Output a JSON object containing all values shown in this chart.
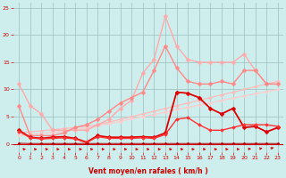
{
  "xlabel": "Vent moyen/en rafales ( km/h )",
  "xlim": [
    -0.5,
    23.5
  ],
  "ylim": [
    -1.5,
    26
  ],
  "background_color": "#ceeeed",
  "grid_color": "#9bbfbf",
  "series": [
    {
      "name": "lightest_pink_straight1",
      "x": [
        0,
        1,
        2,
        3,
        4,
        5,
        6,
        7,
        8,
        9,
        10,
        11,
        12,
        13,
        14,
        15,
        16,
        17,
        18,
        19,
        20,
        21,
        22,
        23
      ],
      "y": [
        2.0,
        2.2,
        2.4,
        2.6,
        2.8,
        3.0,
        3.2,
        3.5,
        4.0,
        4.5,
        5.0,
        5.5,
        6.0,
        6.5,
        7.0,
        7.5,
        8.0,
        8.5,
        9.0,
        9.5,
        10.0,
        10.5,
        11.0,
        11.5
      ],
      "color": "#ffbbbb",
      "linewidth": 0.9,
      "marker": "D",
      "markersize": 1.8
    },
    {
      "name": "lightest_pink_straight2",
      "x": [
        0,
        1,
        2,
        3,
        4,
        5,
        6,
        7,
        8,
        9,
        10,
        11,
        12,
        13,
        14,
        15,
        16,
        17,
        18,
        19,
        20,
        21,
        22,
        23
      ],
      "y": [
        1.5,
        1.7,
        1.9,
        2.1,
        2.3,
        2.6,
        2.9,
        3.3,
        3.7,
        4.1,
        4.6,
        5.0,
        5.4,
        5.8,
        6.3,
        6.7,
        7.1,
        7.5,
        8.0,
        8.4,
        8.8,
        9.2,
        9.6,
        10.0
      ],
      "color": "#ffcccc",
      "linewidth": 0.9,
      "marker": "D",
      "markersize": 1.8
    },
    {
      "name": "salmon_peak_high",
      "x": [
        0,
        1,
        2,
        3,
        4,
        5,
        6,
        7,
        8,
        9,
        10,
        11,
        12,
        13,
        14,
        15,
        16,
        17,
        18,
        19,
        20,
        21,
        22,
        23
      ],
      "y": [
        11.0,
        7.0,
        5.5,
        2.5,
        2.5,
        2.5,
        2.5,
        3.5,
        4.5,
        6.5,
        8.0,
        13.0,
        15.5,
        23.5,
        18.0,
        15.5,
        15.0,
        15.0,
        15.0,
        15.0,
        16.5,
        13.5,
        11.0,
        11.0
      ],
      "color": "#ffaaaa",
      "linewidth": 1.0,
      "marker": "D",
      "markersize": 2.5
    },
    {
      "name": "salmon_peak_mid",
      "x": [
        0,
        1,
        2,
        3,
        4,
        5,
        6,
        7,
        8,
        9,
        10,
        11,
        12,
        13,
        14,
        15,
        16,
        17,
        18,
        19,
        20,
        21,
        22,
        23
      ],
      "y": [
        7.0,
        1.5,
        1.5,
        1.5,
        2.0,
        3.0,
        3.5,
        4.5,
        6.0,
        7.5,
        8.5,
        9.5,
        13.5,
        18.0,
        14.0,
        11.5,
        11.0,
        11.0,
        11.5,
        11.0,
        13.5,
        13.5,
        11.0,
        11.0
      ],
      "color": "#ff8888",
      "linewidth": 1.0,
      "marker": "D",
      "markersize": 2.5
    },
    {
      "name": "dark_red_spiky",
      "x": [
        0,
        1,
        2,
        3,
        4,
        5,
        6,
        7,
        8,
        9,
        10,
        11,
        12,
        13,
        14,
        15,
        16,
        17,
        18,
        19,
        20,
        21,
        22,
        23
      ],
      "y": [
        2.5,
        1.2,
        1.0,
        1.2,
        1.3,
        1.0,
        0.3,
        1.5,
        1.2,
        1.2,
        1.2,
        1.3,
        1.2,
        2.0,
        9.5,
        9.3,
        8.5,
        6.5,
        5.5,
        6.5,
        3.0,
        3.2,
        2.2,
        3.0
      ],
      "color": "#dd0000",
      "linewidth": 1.3,
      "marker": "D",
      "markersize": 2.5
    },
    {
      "name": "dark_red_lower",
      "x": [
        0,
        1,
        2,
        3,
        4,
        5,
        6,
        7,
        8,
        9,
        10,
        11,
        12,
        13,
        14,
        15,
        16,
        17,
        18,
        19,
        20,
        21,
        22,
        23
      ],
      "y": [
        2.3,
        1.1,
        0.9,
        1.0,
        1.1,
        0.9,
        0.2,
        1.3,
        1.0,
        1.0,
        1.0,
        1.1,
        1.0,
        1.7,
        4.5,
        4.8,
        3.5,
        2.5,
        2.5,
        3.0,
        3.5,
        3.5,
        3.5,
        3.2
      ],
      "color": "#ff3333",
      "linewidth": 1.0,
      "marker": "D",
      "markersize": 2.0
    },
    {
      "name": "bottom_flat",
      "x": [
        0,
        1,
        2,
        3,
        4,
        5,
        6,
        7,
        8,
        9,
        10,
        11,
        12,
        13,
        14,
        15,
        16,
        17,
        18,
        19,
        20,
        21,
        22,
        23
      ],
      "y": [
        0.1,
        0.05,
        0.05,
        0.05,
        0.05,
        0.05,
        0.05,
        0.05,
        0.05,
        0.05,
        0.05,
        0.05,
        0.05,
        0.05,
        0.05,
        0.05,
        0.05,
        0.05,
        0.05,
        0.05,
        0.05,
        0.05,
        0.05,
        0.05
      ],
      "color": "#aa0000",
      "linewidth": 0.7,
      "marker": "D",
      "markersize": 1.5
    }
  ],
  "xticks": [
    0,
    1,
    2,
    3,
    4,
    5,
    6,
    7,
    8,
    9,
    10,
    11,
    12,
    13,
    14,
    15,
    16,
    17,
    18,
    19,
    20,
    21,
    22,
    23
  ],
  "yticks": [
    0,
    5,
    10,
    15,
    20,
    25
  ]
}
